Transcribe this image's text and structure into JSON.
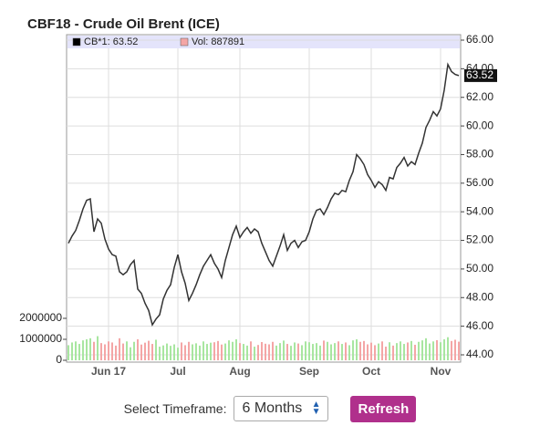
{
  "chart_data": {
    "type": "line",
    "title": "CBF18 - Crude Oil Brent (ICE)",
    "categories": [
      null,
      null,
      null,
      null,
      null,
      null,
      null,
      null,
      null,
      null,
      null,
      "Jun 17",
      null,
      null,
      null,
      null,
      null,
      null,
      null,
      null,
      null,
      null,
      null,
      null,
      null,
      null,
      null,
      null,
      null,
      null,
      "Jul",
      null,
      null,
      null,
      null,
      null,
      null,
      null,
      null,
      null,
      null,
      null,
      null,
      null,
      null,
      null,
      null,
      "Aug",
      null,
      null,
      null,
      null,
      null,
      null,
      null,
      null,
      null,
      null,
      null,
      null,
      null,
      null,
      null,
      null,
      null,
      null,
      "Sep",
      null,
      null,
      null,
      null,
      null,
      null,
      null,
      null,
      null,
      null,
      null,
      null,
      null,
      null,
      null,
      null,
      "Oct",
      null,
      null,
      null,
      null,
      null,
      null,
      null,
      null,
      null,
      null,
      null,
      null,
      null,
      null,
      null,
      null,
      null,
      null,
      "Nov",
      null,
      null,
      null,
      null,
      null
    ],
    "series": [
      {
        "name": "CB*1: 63.52",
        "color": "#333333",
        "axis": "y2",
        "values": [
          51.8,
          52.3,
          52.7,
          53.4,
          54.2,
          54.8,
          54.9,
          52.6,
          53.5,
          53.2,
          52.1,
          51.4,
          51.0,
          50.9,
          49.8,
          49.6,
          49.8,
          50.3,
          50.6,
          48.6,
          48.3,
          47.6,
          47.1,
          46.1,
          46.5,
          46.8,
          47.9,
          48.5,
          48.9,
          50.1,
          51.0,
          49.8,
          49.0,
          47.8,
          48.3,
          48.9,
          49.6,
          50.2,
          50.6,
          51.0,
          50.4,
          50.0,
          49.4,
          50.6,
          51.5,
          52.4,
          53.0,
          52.2,
          52.6,
          52.9,
          52.5,
          52.8,
          52.6,
          51.8,
          51.2,
          50.6,
          50.2,
          50.9,
          51.6,
          52.4,
          51.3,
          51.8,
          52.0,
          51.5,
          51.9,
          52.0,
          52.6,
          53.5,
          54.1,
          54.2,
          53.8,
          54.3,
          54.9,
          55.3,
          55.2,
          55.5,
          55.4,
          56.2,
          56.8,
          58.0,
          57.7,
          57.3,
          56.6,
          56.2,
          55.7,
          56.1,
          55.9,
          55.5,
          56.4,
          56.3,
          57.1,
          57.4,
          57.8,
          57.2,
          57.5,
          57.3,
          58.1,
          58.8,
          59.9,
          60.4,
          61.0,
          60.7,
          61.2,
          62.5,
          64.3,
          63.8,
          63.6,
          63.52
        ]
      },
      {
        "name": "Vol: 887891",
        "color": "#f4a6a6",
        "type": "bar",
        "up_color": "#a8e6a0",
        "down_color": "#f4a6a6",
        "values": [
          720000,
          850000,
          900000,
          780000,
          950000,
          1000000,
          1050000,
          880000,
          1150000,
          820000,
          760000,
          900000,
          850000,
          700000,
          1050000,
          800000,
          900000,
          620000,
          880000,
          1000000,
          750000,
          840000,
          930000,
          780000,
          980000,
          650000,
          710000,
          800000,
          690000,
          760000,
          600000,
          850000,
          720000,
          880000,
          760000,
          810000,
          700000,
          900000,
          780000,
          840000,
          860000,
          920000,
          750000,
          800000,
          950000,
          880000,
          1000000,
          820000,
          780000,
          700000,
          900000,
          650000,
          730000,
          870000,
          790000,
          760000,
          880000,
          700000,
          820000,
          940000,
          780000,
          690000,
          850000,
          800000,
          720000,
          900000,
          860000,
          780000,
          820000,
          700000,
          940000,
          880000,
          760000,
          820000,
          900000,
          780000,
          850000,
          720000,
          950000,
          1000000,
          880000,
          920000,
          760000,
          840000,
          720000,
          800000,
          900000,
          650000,
          860000,
          700000,
          820000,
          900000,
          780000,
          850000,
          920000,
          740000,
          880000,
          950000,
          1050000,
          800000,
          900000,
          960000,
          860000,
          1000000,
          1100000,
          920000,
          980000,
          887891
        ]
      }
    ],
    "ylim": [
      0,
      2000000
    ],
    "yticks": [
      0,
      1000000,
      2000000
    ],
    "y2lim": [
      44,
      66
    ],
    "y2ticks": [
      {
        "value": 44,
        "label": "44.00"
      },
      {
        "value": 46,
        "label": "46.00"
      },
      {
        "value": 48,
        "label": "48.00"
      },
      {
        "value": 50,
        "label": "50.00"
      },
      {
        "value": 52,
        "label": "52.00"
      },
      {
        "value": 54,
        "label": "54.00"
      },
      {
        "value": 56,
        "label": "56.00"
      },
      {
        "value": 58,
        "label": "58.00"
      },
      {
        "value": 60,
        "label": "60.00"
      },
      {
        "value": 62,
        "label": "62.00"
      },
      {
        "value": 64,
        "label": "64.00"
      },
      {
        "value": 66,
        "label": "66.00"
      }
    ],
    "grid": true
  },
  "controls": {
    "label": "Select Timeframe:",
    "timeframe": "6 Months",
    "button": "Refresh"
  }
}
